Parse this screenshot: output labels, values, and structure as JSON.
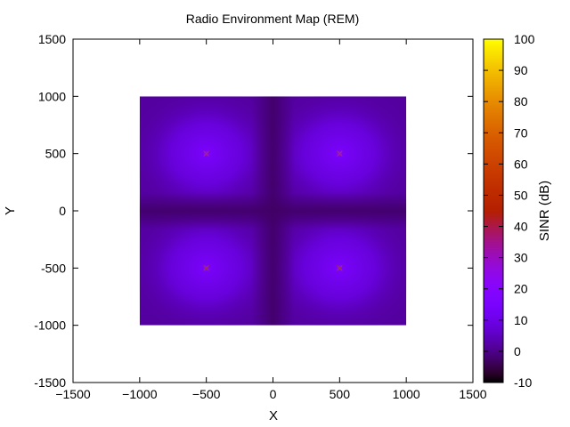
{
  "chart_data": {
    "type": "heatmap",
    "title": "Radio Environment Map (REM)",
    "xlabel": "X",
    "ylabel": "Y",
    "xlim": [
      -1500,
      1500
    ],
    "ylim": [
      -1500,
      1500
    ],
    "xticks": [
      -1500,
      -1000,
      -500,
      0,
      500,
      1000,
      1500
    ],
    "yticks": [
      -1500,
      -1000,
      -500,
      0,
      500,
      1000,
      1500
    ],
    "heatmap_extent": {
      "x": [
        -1000,
        1000
      ],
      "y": [
        -1000,
        1000
      ]
    },
    "transmitters": [
      {
        "x": -500,
        "y": 500
      },
      {
        "x": 500,
        "y": 500
      },
      {
        "x": -500,
        "y": -500
      },
      {
        "x": 500,
        "y": -500
      }
    ],
    "sinr_estimate_db": {
      "at_transmitter": 26,
      "near_transmitter": 15,
      "cell_center_region": 8,
      "cell_boundary": 0,
      "map_center": -3
    },
    "colorbar": {
      "label": "SINR (dB)",
      "range": [
        -10,
        100
      ],
      "ticks": [
        -10,
        0,
        10,
        20,
        30,
        40,
        50,
        60,
        70,
        80,
        90,
        100
      ],
      "palette": "gnuplot"
    },
    "grid": false,
    "legend": "none"
  }
}
